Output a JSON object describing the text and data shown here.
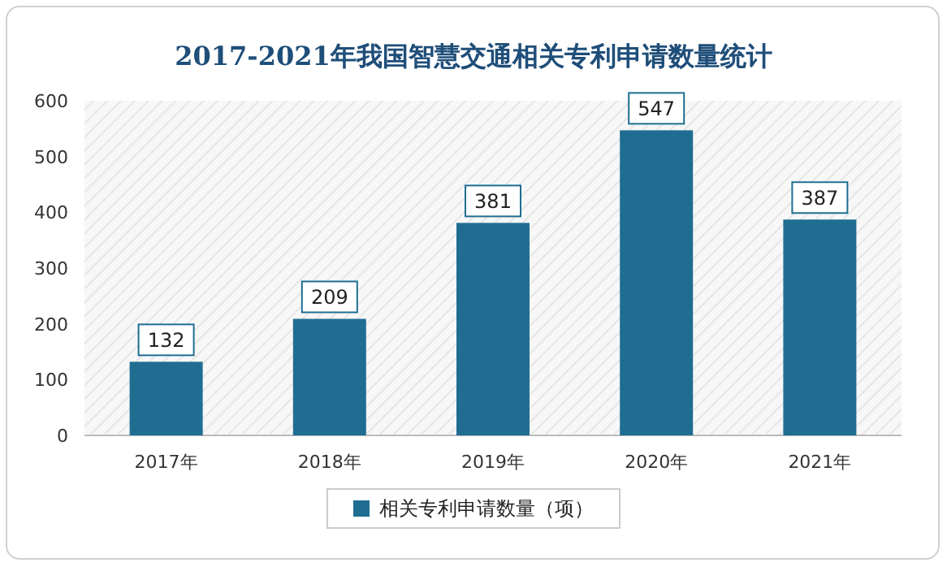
{
  "chart_data": {
    "type": "bar",
    "title": "2017-2021年我国智慧交通相关专利申请数量统计",
    "categories": [
      "2017年",
      "2018年",
      "2019年",
      "2020年",
      "2021年"
    ],
    "series": [
      {
        "name": "相关专利申请数量（项）",
        "color": "#1f6e92",
        "values": [
          132,
          209,
          381,
          547,
          387
        ]
      }
    ],
    "ylim": [
      0,
      600
    ],
    "yticks": [
      0,
      100,
      200,
      300,
      400,
      500,
      600
    ],
    "legend": "bottom",
    "data_labels": true
  }
}
